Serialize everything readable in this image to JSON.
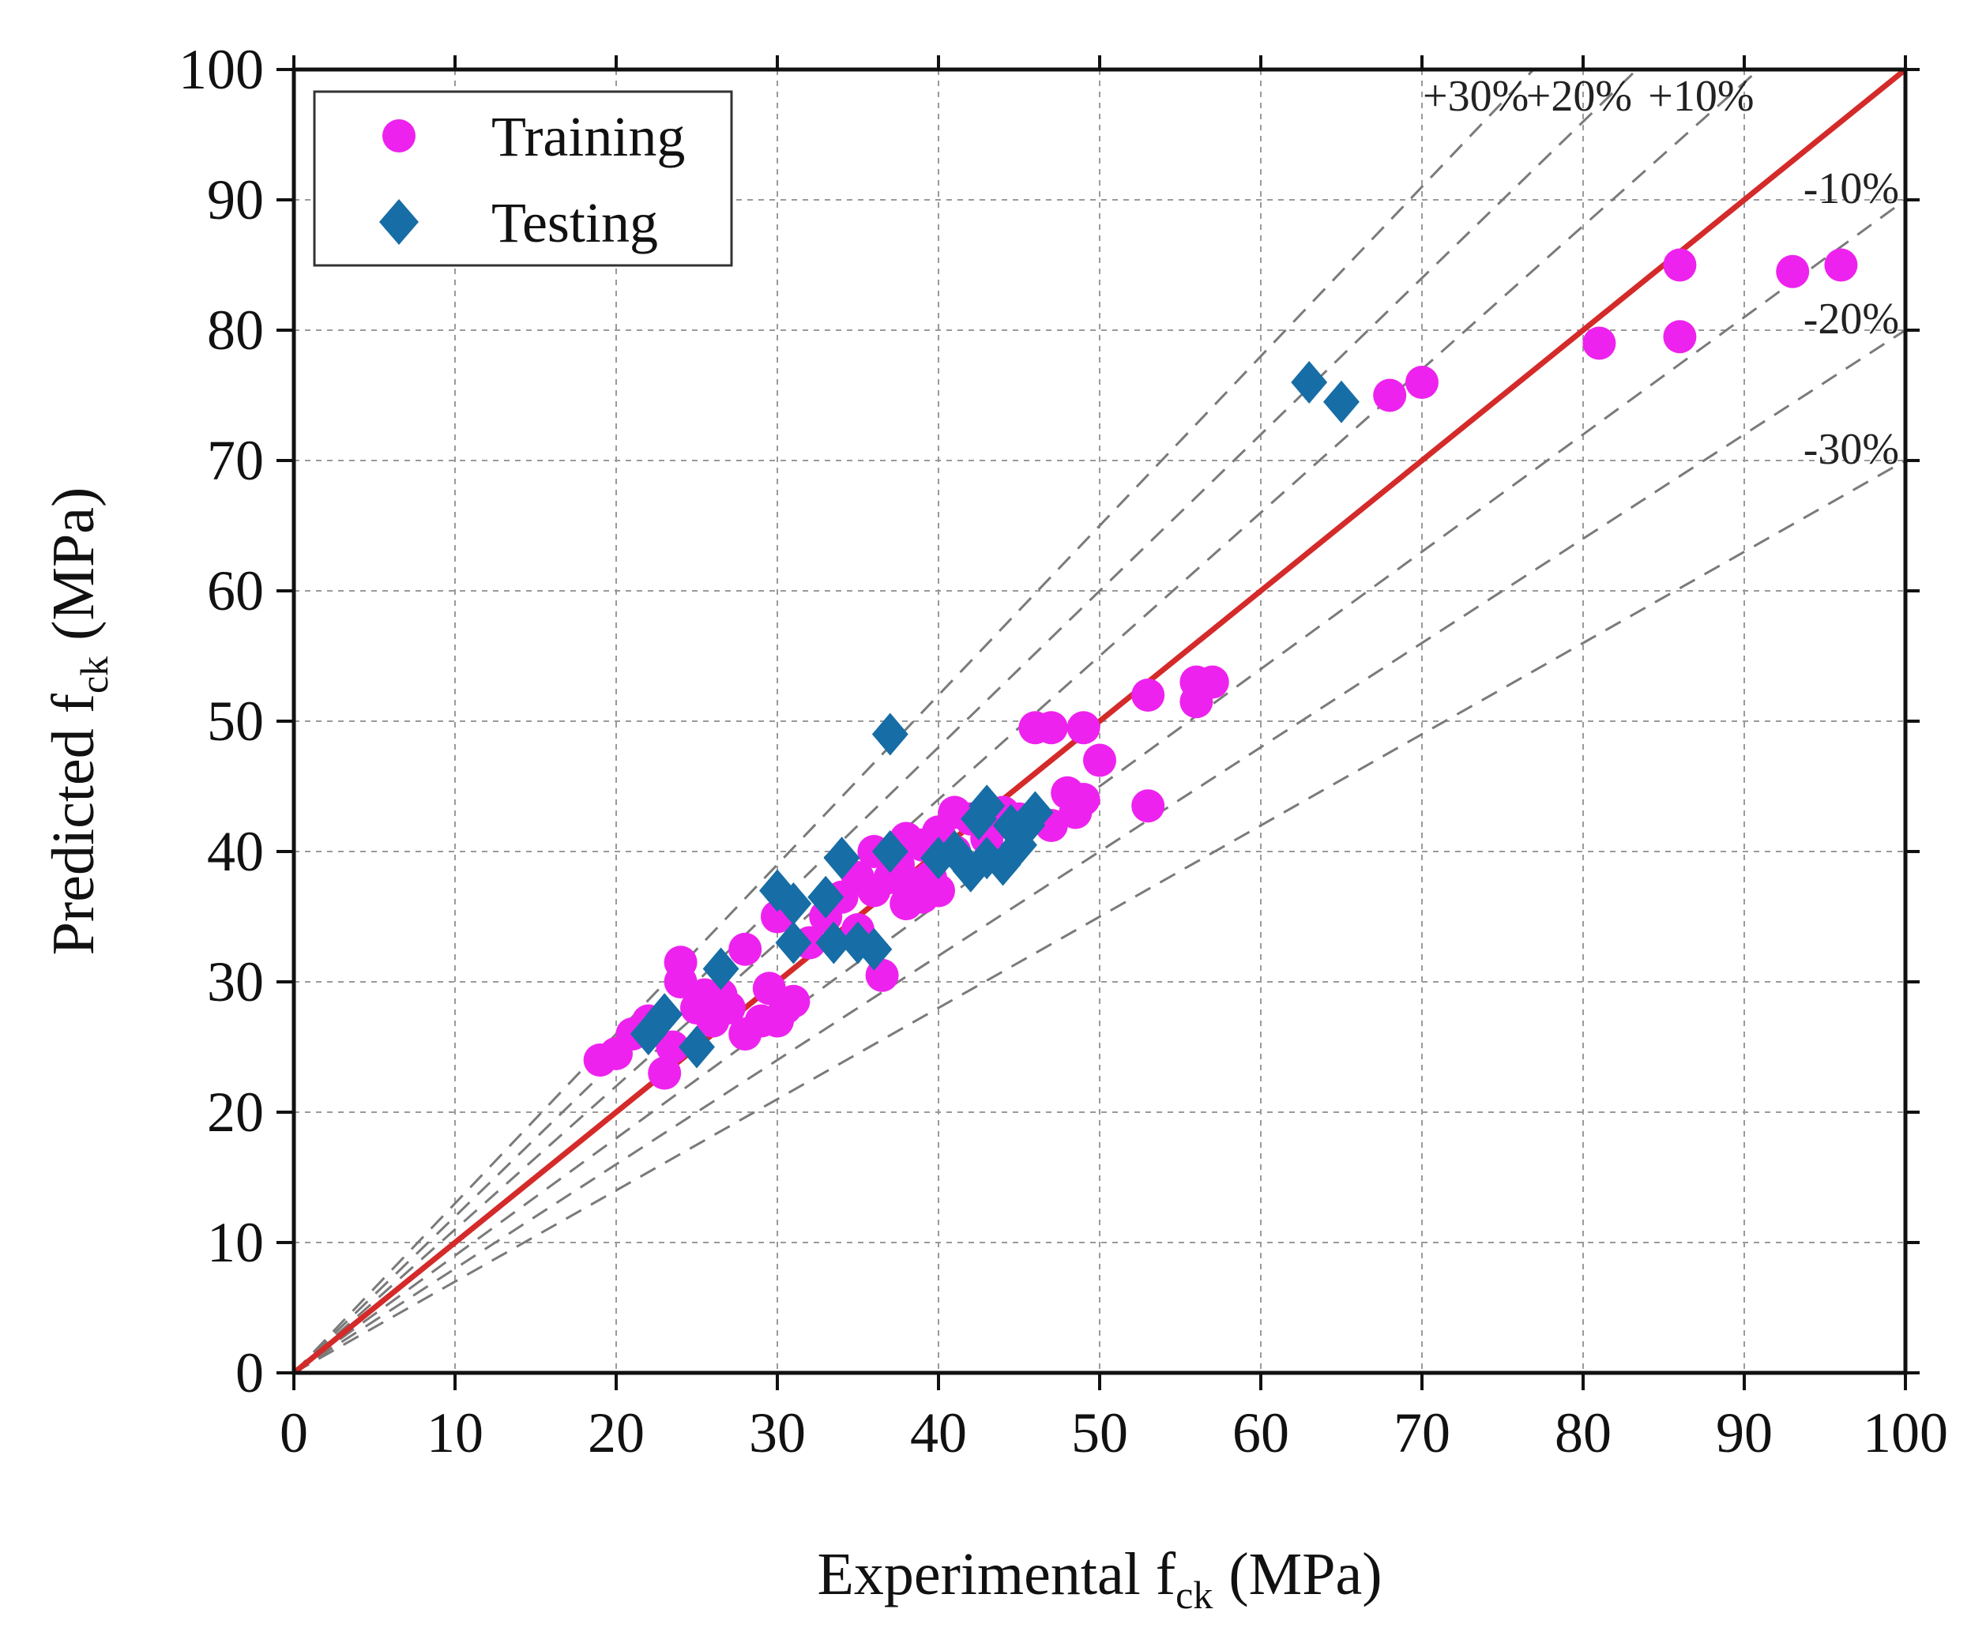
{
  "chart_data": {
    "type": "scatter",
    "xlabel": {
      "main": "Experimental f",
      "sub": "ck",
      "unit": "(MPa)"
    },
    "ylabel": {
      "main": "Predicted f",
      "sub": "ck",
      "unit": "(MPa)"
    },
    "xlim": [
      0,
      100
    ],
    "ylim": [
      0,
      100
    ],
    "xticks": [
      0,
      10,
      20,
      30,
      40,
      50,
      60,
      70,
      80,
      90,
      100
    ],
    "yticks": [
      0,
      10,
      20,
      30,
      40,
      50,
      60,
      70,
      80,
      90,
      100
    ],
    "grid": true,
    "legend_position": "top-left",
    "reference_line": {
      "slope": 1,
      "color": "#d42a2a"
    },
    "error_bands": [
      {
        "label": "+30%",
        "factor": 1.3
      },
      {
        "label": "+20%",
        "factor": 1.2
      },
      {
        "label": "+10%",
        "factor": 1.1
      },
      {
        "label": "-10%",
        "factor": 0.9
      },
      {
        "label": "-20%",
        "factor": 0.8
      },
      {
        "label": "-30%",
        "factor": 0.7
      }
    ],
    "series": [
      {
        "name": "Training",
        "marker": "circle",
        "color": "#ee22ee",
        "points": [
          [
            19,
            24
          ],
          [
            20,
            24.5
          ],
          [
            21,
            26
          ],
          [
            22,
            27
          ],
          [
            23,
            23
          ],
          [
            23.5,
            25
          ],
          [
            24,
            30
          ],
          [
            24,
            31.5
          ],
          [
            25,
            28
          ],
          [
            25.5,
            29
          ],
          [
            26,
            27
          ],
          [
            26.5,
            29
          ],
          [
            27,
            28
          ],
          [
            28,
            26
          ],
          [
            28,
            32.5
          ],
          [
            29,
            27
          ],
          [
            29.5,
            29.5
          ],
          [
            30,
            27
          ],
          [
            30,
            35
          ],
          [
            30.5,
            28
          ],
          [
            31,
            28.5
          ],
          [
            32,
            33
          ],
          [
            33,
            35
          ],
          [
            34,
            36.5
          ],
          [
            35,
            34
          ],
          [
            35,
            38
          ],
          [
            36,
            37
          ],
          [
            36,
            40
          ],
          [
            36.5,
            30.5
          ],
          [
            37,
            38
          ],
          [
            37.5,
            39
          ],
          [
            38,
            36
          ],
          [
            38,
            41
          ],
          [
            38.5,
            37.5
          ],
          [
            39,
            36.5
          ],
          [
            39,
            40.5
          ],
          [
            39.5,
            38
          ],
          [
            40,
            37
          ],
          [
            40,
            41.5
          ],
          [
            41,
            40
          ],
          [
            41,
            43
          ],
          [
            42,
            42.5
          ],
          [
            43,
            41
          ],
          [
            44,
            43
          ],
          [
            45,
            42.5
          ],
          [
            46,
            49.5
          ],
          [
            47,
            42
          ],
          [
            47,
            49.5
          ],
          [
            48,
            44.5
          ],
          [
            48.5,
            43
          ],
          [
            49,
            44
          ],
          [
            49,
            49.5
          ],
          [
            50,
            47
          ],
          [
            53,
            43.5
          ],
          [
            53,
            52
          ],
          [
            56,
            51.5
          ],
          [
            56,
            53
          ],
          [
            57,
            53
          ],
          [
            68,
            75
          ],
          [
            70,
            76
          ],
          [
            81,
            79
          ],
          [
            86,
            79.5
          ],
          [
            86,
            85
          ],
          [
            93,
            84.5
          ],
          [
            96,
            85
          ]
        ]
      },
      {
        "name": "Testing",
        "marker": "diamond",
        "color": "#176da6",
        "points": [
          [
            22,
            26
          ],
          [
            23,
            27.5
          ],
          [
            25,
            25
          ],
          [
            26.5,
            31
          ],
          [
            30,
            37
          ],
          [
            31,
            33
          ],
          [
            31,
            36
          ],
          [
            33,
            36.5
          ],
          [
            33.5,
            33
          ],
          [
            34,
            39.5
          ],
          [
            35,
            33
          ],
          [
            36,
            32.5
          ],
          [
            37,
            49
          ],
          [
            37,
            40
          ],
          [
            40,
            39.5
          ],
          [
            41,
            40
          ],
          [
            42,
            38.5
          ],
          [
            42.5,
            42.5
          ],
          [
            43,
            39.5
          ],
          [
            43,
            43.5
          ],
          [
            44,
            39
          ],
          [
            44.5,
            42
          ],
          [
            45,
            40.5
          ],
          [
            45.5,
            42
          ],
          [
            46,
            43
          ],
          [
            63,
            76
          ],
          [
            65,
            74.5
          ]
        ]
      }
    ]
  }
}
